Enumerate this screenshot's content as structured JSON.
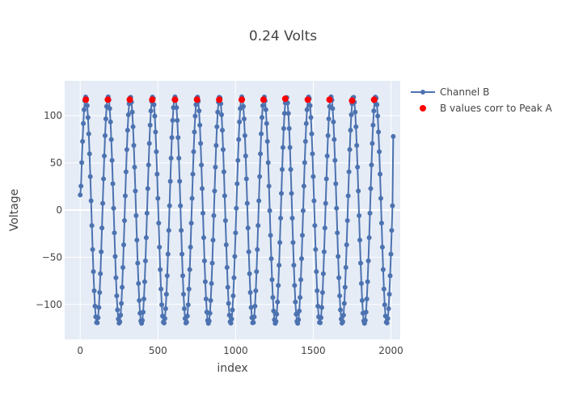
{
  "chart_data": {
    "type": "scatter",
    "title": "0.24 Volts",
    "xlabel": "index",
    "ylabel": "Voltage",
    "xlim": [
      -100,
      2060
    ],
    "ylim": [
      -137,
      137
    ],
    "x_ticks": [
      0,
      500,
      1000,
      1500,
      2000
    ],
    "y_ticks": [
      -100,
      -50,
      0,
      50,
      100
    ],
    "grid": true,
    "legend": "top-right, outside plot",
    "background": "#E5ECF6",
    "series": [
      {
        "name": "Channel B",
        "mode": "lines+markers",
        "color": "#4C72B0",
        "sampling": {
          "x_start": 0,
          "x_end": 2015,
          "x_step": 5,
          "amplitude": 120,
          "period": 143.5,
          "first_peak_x": 36,
          "start_value": 16,
          "end_value": 78
        }
      },
      {
        "name": "B values corr to Peak A",
        "mode": "markers",
        "color": "#FF0000",
        "x": [
          36,
          178,
          319,
          464,
          610,
          752,
          895,
          1040,
          1180,
          1320,
          1465,
          1605,
          1750,
          1892
        ],
        "y": [
          117,
          117,
          117,
          117,
          117,
          117,
          117,
          117,
          117,
          118,
          117,
          117,
          116,
          117
        ]
      }
    ]
  }
}
